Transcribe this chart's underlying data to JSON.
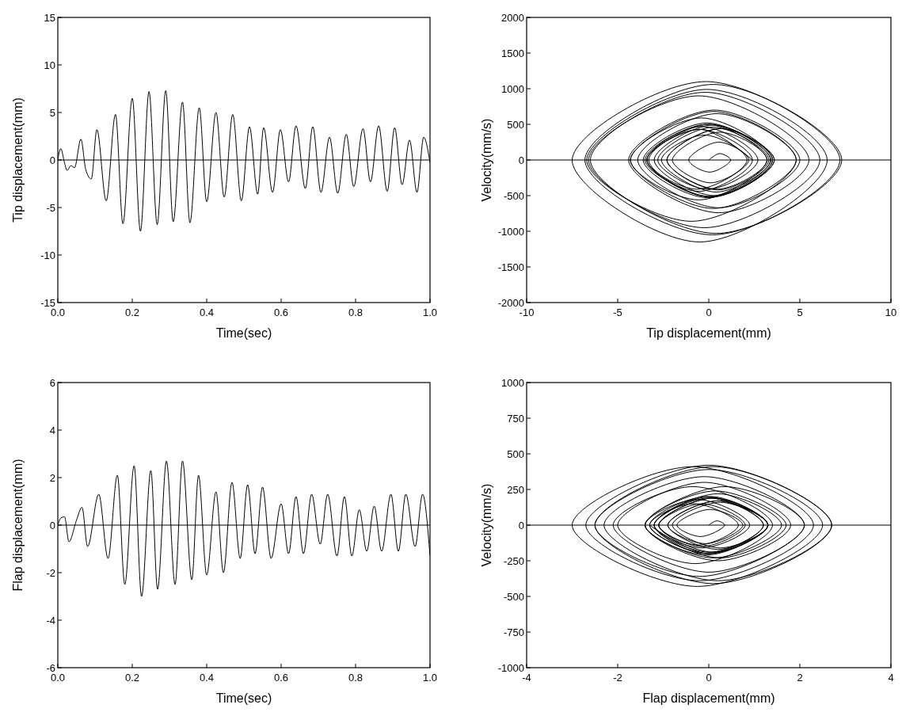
{
  "chart_data": [
    {
      "type": "line",
      "xlabel": "Time(sec)",
      "ylabel": "Tip displacement(mm)",
      "color": "#000000",
      "xlim": [
        0,
        1
      ],
      "ylim": [
        -15,
        15
      ],
      "xticks": [
        {
          "value": 0,
          "label": "0.0"
        },
        {
          "value": 0.2,
          "label": "0.2"
        },
        {
          "value": 0.4,
          "label": "0.4"
        },
        {
          "value": 0.6,
          "label": "0.6"
        },
        {
          "value": 0.8,
          "label": "0.8"
        },
        {
          "value": 1,
          "label": "1.0"
        }
      ],
      "yticks": [
        -15,
        -10,
        -5,
        0,
        5,
        10,
        15
      ],
      "ref_lines": [
        {
          "axis": "y",
          "value": 0
        }
      ],
      "x": [
        0,
        0.008,
        0.018,
        0.025,
        0.035,
        0.045,
        0.062,
        0.075,
        0.09,
        0.105,
        0.13,
        0.155,
        0.175,
        0.2,
        0.222,
        0.245,
        0.267,
        0.29,
        0.31,
        0.335,
        0.355,
        0.38,
        0.4,
        0.425,
        0.447,
        0.47,
        0.493,
        0.515,
        0.537,
        0.553,
        0.577,
        0.598,
        0.62,
        0.64,
        0.665,
        0.685,
        0.707,
        0.73,
        0.752,
        0.775,
        0.795,
        0.82,
        0.84,
        0.862,
        0.885,
        0.905,
        0.925,
        0.945,
        0.965,
        0.983,
        1.0
      ],
      "values": [
        0,
        1.2,
        -0.3,
        -1.1,
        -0.6,
        -0.8,
        2.2,
        -1.0,
        -2.0,
        3.2,
        -4.3,
        4.8,
        -6.7,
        6.5,
        -7.5,
        7.2,
        -6.8,
        7.3,
        -6.5,
        6.1,
        -6.6,
        5.5,
        -4.4,
        5.0,
        -3.9,
        4.8,
        -4.3,
        3.5,
        -3.6,
        3.4,
        -3.4,
        3.2,
        -2.3,
        3.6,
        -3.0,
        3.5,
        -3.4,
        2.4,
        -3.5,
        2.7,
        -2.8,
        3.3,
        -2.3,
        3.6,
        -3.3,
        3.4,
        -2.6,
        2.1,
        -3.4,
        2.4,
        -0.3
      ]
    },
    {
      "type": "line",
      "xlabel": "Tip displacement(mm)",
      "ylabel": "Velocity(mm/s)",
      "color": "#000000",
      "xlim": [
        -10,
        10
      ],
      "ylim": [
        -2000,
        2000
      ],
      "xticks": [
        -10,
        -5,
        0,
        5,
        10
      ],
      "yticks": [
        -2000,
        -1500,
        -1000,
        -500,
        0,
        500,
        1000,
        1500,
        2000
      ],
      "ref_lines": [
        {
          "axis": "y",
          "value": 0
        }
      ],
      "x": [
        0,
        0.6,
        1.2,
        0.05,
        -1.1,
        0.55,
        2.2,
        0.1,
        -2.0,
        0.6,
        3.2,
        -0.55,
        -4.3,
        0.25,
        4.8,
        -0.95,
        -6.7,
        -0.1,
        6.5,
        -0.5,
        -7.5,
        -0.15,
        7.2,
        0.2,
        -6.8,
        0.25,
        7.3,
        0.4,
        -6.5,
        -0.2,
        6.1,
        -0.25,
        -6.6,
        -0.55,
        5.5,
        0.55,
        -4.4,
        0.3,
        5.0,
        0.55,
        -3.9,
        0.45,
        4.8,
        0.25,
        -4.3,
        -0.4,
        3.5,
        -0.05,
        -3.6,
        -0.1,
        3.4,
        0,
        -3.4,
        -0.1,
        3.2,
        0.45,
        -2.3,
        0.65,
        3.6,
        0.3,
        -3.0,
        0.25,
        3.5,
        0.05,
        -3.4,
        -0.5,
        2.4,
        -0.55,
        -3.5,
        -0.4,
        2.7,
        -0.05,
        -2.8,
        0.25,
        3.3,
        0.5,
        -2.3,
        0.65,
        3.6,
        0.15,
        -3.3,
        0.05,
        3.4,
        0.4,
        -2.6,
        -0.25,
        2.1,
        -0.65,
        -3.4,
        -0.5,
        2.4
      ],
      "values": [
        0,
        90,
        0,
        -170,
        0,
        250,
        0,
        -320,
        0,
        390,
        0,
        -560,
        0,
        680,
        0,
        -860,
        0,
        990,
        0,
        -1150,
        0,
        1100,
        0,
        -1050,
        0,
        1060,
        0,
        -1030,
        0,
        950,
        0,
        -950,
        0,
        900,
        0,
        -740,
        0,
        700,
        0,
        -670,
        0,
        650,
        0,
        -680,
        0,
        590,
        0,
        -530,
        0,
        520,
        0,
        -510,
        0,
        500,
        0,
        -410,
        0,
        440,
        0,
        -500,
        0,
        490,
        0,
        -520,
        0,
        430,
        0,
        -440,
        0,
        470,
        0,
        -410,
        0,
        460,
        0,
        -420,
        0,
        440,
        0,
        -520,
        0,
        500,
        0,
        -450,
        0,
        350,
        0,
        -410,
        0,
        430,
        0
      ]
    },
    {
      "type": "line",
      "xlabel": "Time(sec)",
      "ylabel": "Flap displacement(mm)",
      "color": "#000000",
      "xlim": [
        0,
        1
      ],
      "ylim": [
        -6,
        6
      ],
      "xticks": [
        {
          "value": 0,
          "label": "0.0"
        },
        {
          "value": 0.2,
          "label": "0.2"
        },
        {
          "value": 0.4,
          "label": "0.4"
        },
        {
          "value": 0.6,
          "label": "0.6"
        },
        {
          "value": 0.8,
          "label": "0.8"
        },
        {
          "value": 1,
          "label": "1.0"
        }
      ],
      "yticks": [
        -6,
        -4,
        -2,
        0,
        2,
        4,
        6
      ],
      "ref_lines": [
        {
          "axis": "y",
          "value": 0
        }
      ],
      "x": [
        0,
        0.008,
        0.018,
        0.03,
        0.05,
        0.065,
        0.08,
        0.11,
        0.135,
        0.16,
        0.18,
        0.205,
        0.225,
        0.25,
        0.268,
        0.292,
        0.315,
        0.335,
        0.36,
        0.378,
        0.4,
        0.425,
        0.445,
        0.468,
        0.49,
        0.51,
        0.53,
        0.55,
        0.573,
        0.6,
        0.62,
        0.64,
        0.66,
        0.682,
        0.705,
        0.725,
        0.75,
        0.77,
        0.79,
        0.81,
        0.83,
        0.85,
        0.87,
        0.895,
        0.915,
        0.935,
        0.96,
        0.98,
        1.0
      ],
      "values": [
        0,
        0.3,
        0.35,
        -0.7,
        0.2,
        0.75,
        -0.9,
        1.3,
        -1.4,
        2.1,
        -2.5,
        2.5,
        -3.0,
        2.3,
        -2.7,
        2.7,
        -2.5,
        2.7,
        -2.3,
        2.1,
        -2.1,
        1.4,
        -2.0,
        1.8,
        -1.4,
        1.7,
        -1.2,
        1.6,
        -1.4,
        0.9,
        -1.2,
        1.2,
        -1.2,
        1.3,
        -0.8,
        1.3,
        -1.3,
        1.2,
        -1.3,
        0.65,
        -1.1,
        0.8,
        -1.1,
        1.3,
        -1.1,
        1.3,
        -0.9,
        1.3,
        -1.3
      ]
    },
    {
      "type": "line",
      "xlabel": "Flap displacement(mm)",
      "ylabel": "Velocity(mm/s)",
      "color": "#000000",
      "xlim": [
        -4,
        4
      ],
      "ylim": [
        -1000,
        1000
      ],
      "xticks": [
        -4,
        -2,
        0,
        2,
        4
      ],
      "yticks": [
        -1000,
        -750,
        -500,
        -250,
        0,
        250,
        500,
        750,
        1000
      ],
      "ref_lines": [
        {
          "axis": "y",
          "value": 0
        }
      ],
      "x": [
        0,
        0.18,
        0.35,
        -0.18,
        -0.7,
        0.03,
        0.75,
        -0.08,
        -0.9,
        0.2,
        1.3,
        -0.05,
        -1.4,
        0.35,
        2.1,
        -0.2,
        -2.5,
        0,
        2.5,
        -0.25,
        -3.0,
        -0.35,
        2.3,
        -0.2,
        -2.7,
        0,
        2.7,
        0.1,
        -2.5,
        0.1,
        2.7,
        0.2,
        -2.3,
        -0.1,
        2.1,
        0,
        -2.1,
        -0.35,
        1.4,
        -0.3,
        -2.0,
        -0.1,
        1.8,
        0.2,
        -1.4,
        0.15,
        1.7,
        0.25,
        -1.2,
        0.2,
        1.6,
        0.1,
        -1.4,
        -0.25,
        0.9,
        -0.15,
        -1.2,
        0,
        1.2,
        0,
        -1.2,
        0.05,
        1.3,
        0.25,
        -0.8,
        0.25,
        1.3,
        0,
        -1.3,
        -0.05,
        1.2,
        -0.05,
        -1.3,
        -0.33,
        0.65,
        -0.23,
        -1.1,
        -0.15,
        0.8,
        -0.15,
        -1.1,
        0.1,
        1.3,
        0.1,
        -1.1,
        0.1,
        1.3,
        0.2,
        -0.9,
        0.2,
        1.3,
        0,
        -1.3
      ],
      "values": [
        0,
        30,
        0,
        -80,
        0,
        110,
        0,
        -130,
        0,
        170,
        0,
        -210,
        0,
        270,
        0,
        -360,
        0,
        390,
        0,
        -430,
        0,
        410,
        0,
        -390,
        0,
        420,
        0,
        -410,
        0,
        410,
        0,
        -390,
        0,
        340,
        0,
        -330,
        0,
        270,
        0,
        -270,
        0,
        300,
        0,
        -250,
        0,
        240,
        0,
        -230,
        0,
        220,
        0,
        -230,
        0,
        180,
        0,
        -160,
        0,
        190,
        0,
        -190,
        0,
        200,
        0,
        -160,
        0,
        160,
        0,
        -200,
        0,
        200,
        0,
        -200,
        0,
        150,
        0,
        -140,
        0,
        150,
        0,
        -150,
        0,
        190,
        0,
        -190,
        0,
        190,
        0,
        -170,
        0,
        170,
        0,
        -200,
        0
      ]
    }
  ]
}
